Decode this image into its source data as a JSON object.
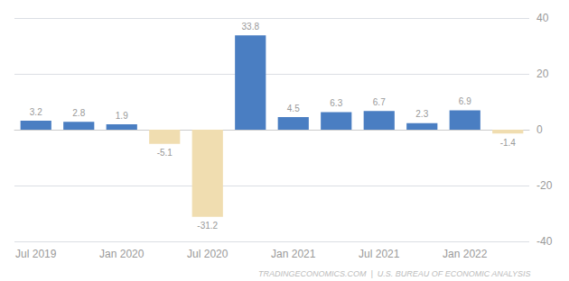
{
  "chart_data": {
    "type": "bar",
    "categories": [
      "Jul 2019",
      null,
      "Jan 2020",
      null,
      "Jul 2020",
      null,
      "Jan 2021",
      null,
      "Jul 2021",
      null,
      "Jan 2022",
      null
    ],
    "values": [
      3.2,
      2.8,
      1.9,
      -5.1,
      -31.2,
      33.8,
      4.5,
      6.3,
      6.7,
      2.3,
      6.9,
      -1.4
    ],
    "colors": [
      "#4a7ec2",
      "#4a7ec2",
      "#4a7ec2",
      "#f0ddb0",
      "#f0ddb0",
      "#4a7ec2",
      "#4a7ec2",
      "#4a7ec2",
      "#4a7ec2",
      "#4a7ec2",
      "#4a7ec2",
      "#f0ddb0"
    ],
    "ylim": [
      -40,
      40
    ],
    "yticks": [
      -40,
      -20,
      0,
      20,
      40
    ],
    "grid": true,
    "data_labels": true,
    "annotations": [
      "TRADINGECONOMICS.COM  |  U.S. BUREAU OF ECONOMIC ANALYSIS"
    ]
  }
}
